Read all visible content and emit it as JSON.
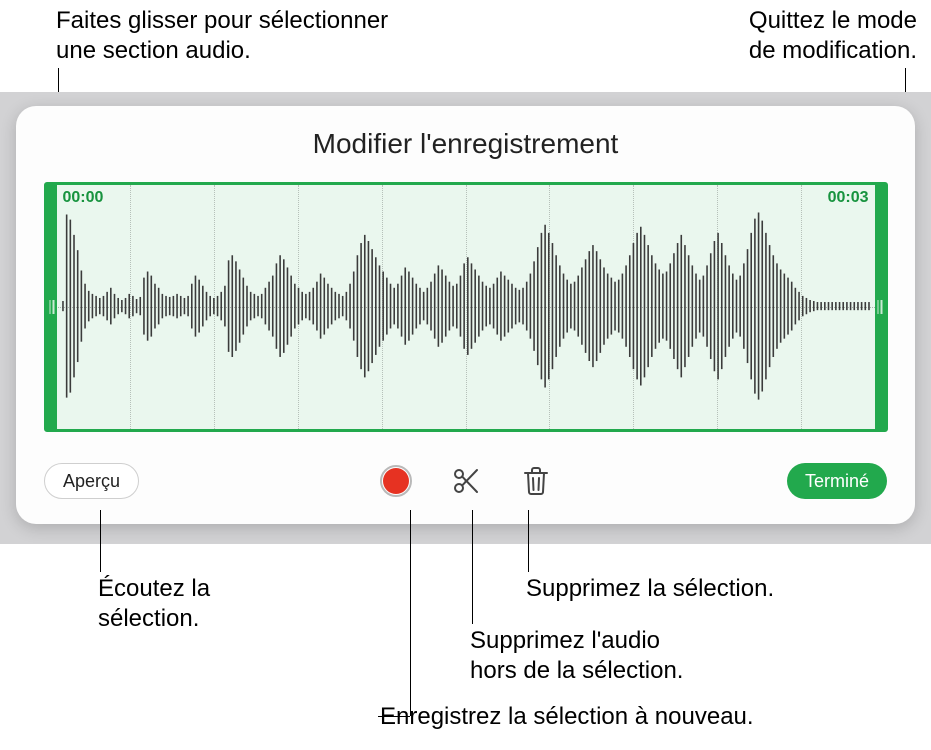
{
  "callouts": {
    "drag": "Faites glisser pour sélectionner\nune section audio.",
    "exit": "Quittez le mode\nde modification.",
    "listen": "Écoutez la\nsélection.",
    "deleteSel": "Supprimez la sélection.",
    "deleteOutside": "Supprimez l'audio\nhors de la sélection.",
    "rerecord": "Enregistrez la sélection à nouveau."
  },
  "panel": {
    "title": "Modifier l'enregistrement",
    "startTime": "00:00",
    "endTime": "00:03"
  },
  "buttons": {
    "preview": "Aperçu",
    "done": "Terminé"
  },
  "colors": {
    "accent": "#22a94d",
    "waveBg": "#eaf7ee",
    "panelBg": "#fdfdfd",
    "outerBg": "#d2d2d4",
    "record": "#e63222",
    "iconStroke": "#444"
  },
  "waveform": {
    "gridCount": 10,
    "bars": 220,
    "envelope": [
      0.05,
      0.9,
      0.85,
      0.7,
      0.55,
      0.35,
      0.22,
      0.15,
      0.12,
      0.1,
      0.08,
      0.1,
      0.14,
      0.18,
      0.12,
      0.08,
      0.06,
      0.08,
      0.12,
      0.1,
      0.07,
      0.09,
      0.28,
      0.34,
      0.3,
      0.22,
      0.18,
      0.12,
      0.1,
      0.09,
      0.1,
      0.12,
      0.1,
      0.08,
      0.1,
      0.22,
      0.3,
      0.26,
      0.2,
      0.14,
      0.1,
      0.08,
      0.1,
      0.14,
      0.2,
      0.45,
      0.5,
      0.44,
      0.36,
      0.28,
      0.2,
      0.14,
      0.12,
      0.1,
      0.12,
      0.18,
      0.24,
      0.3,
      0.42,
      0.5,
      0.46,
      0.38,
      0.3,
      0.22,
      0.18,
      0.14,
      0.12,
      0.14,
      0.18,
      0.24,
      0.32,
      0.28,
      0.22,
      0.18,
      0.14,
      0.12,
      0.1,
      0.14,
      0.22,
      0.34,
      0.5,
      0.62,
      0.7,
      0.64,
      0.56,
      0.48,
      0.4,
      0.34,
      0.28,
      0.22,
      0.18,
      0.22,
      0.3,
      0.38,
      0.34,
      0.28,
      0.22,
      0.18,
      0.14,
      0.18,
      0.24,
      0.32,
      0.4,
      0.36,
      0.3,
      0.24,
      0.2,
      0.22,
      0.3,
      0.42,
      0.48,
      0.42,
      0.36,
      0.3,
      0.24,
      0.2,
      0.18,
      0.22,
      0.28,
      0.34,
      0.3,
      0.26,
      0.22,
      0.18,
      0.16,
      0.18,
      0.24,
      0.32,
      0.44,
      0.58,
      0.72,
      0.8,
      0.72,
      0.62,
      0.5,
      0.4,
      0.32,
      0.26,
      0.22,
      0.24,
      0.3,
      0.38,
      0.46,
      0.54,
      0.6,
      0.54,
      0.46,
      0.38,
      0.32,
      0.28,
      0.24,
      0.26,
      0.32,
      0.4,
      0.5,
      0.62,
      0.72,
      0.78,
      0.7,
      0.6,
      0.5,
      0.42,
      0.36,
      0.32,
      0.34,
      0.42,
      0.52,
      0.62,
      0.7,
      0.6,
      0.5,
      0.4,
      0.32,
      0.26,
      0.3,
      0.4,
      0.52,
      0.64,
      0.72,
      0.62,
      0.5,
      0.4,
      0.32,
      0.26,
      0.3,
      0.42,
      0.56,
      0.72,
      0.86,
      0.92,
      0.84,
      0.72,
      0.6,
      0.5,
      0.42,
      0.36,
      0.32,
      0.28,
      0.24,
      0.18,
      0.14,
      0.1,
      0.08,
      0.06,
      0.05,
      0.04,
      0.04,
      0.04,
      0.04,
      0.04,
      0.04,
      0.04,
      0.04,
      0.04,
      0.04,
      0.04,
      0.04,
      0.04,
      0.04,
      0.04
    ]
  }
}
